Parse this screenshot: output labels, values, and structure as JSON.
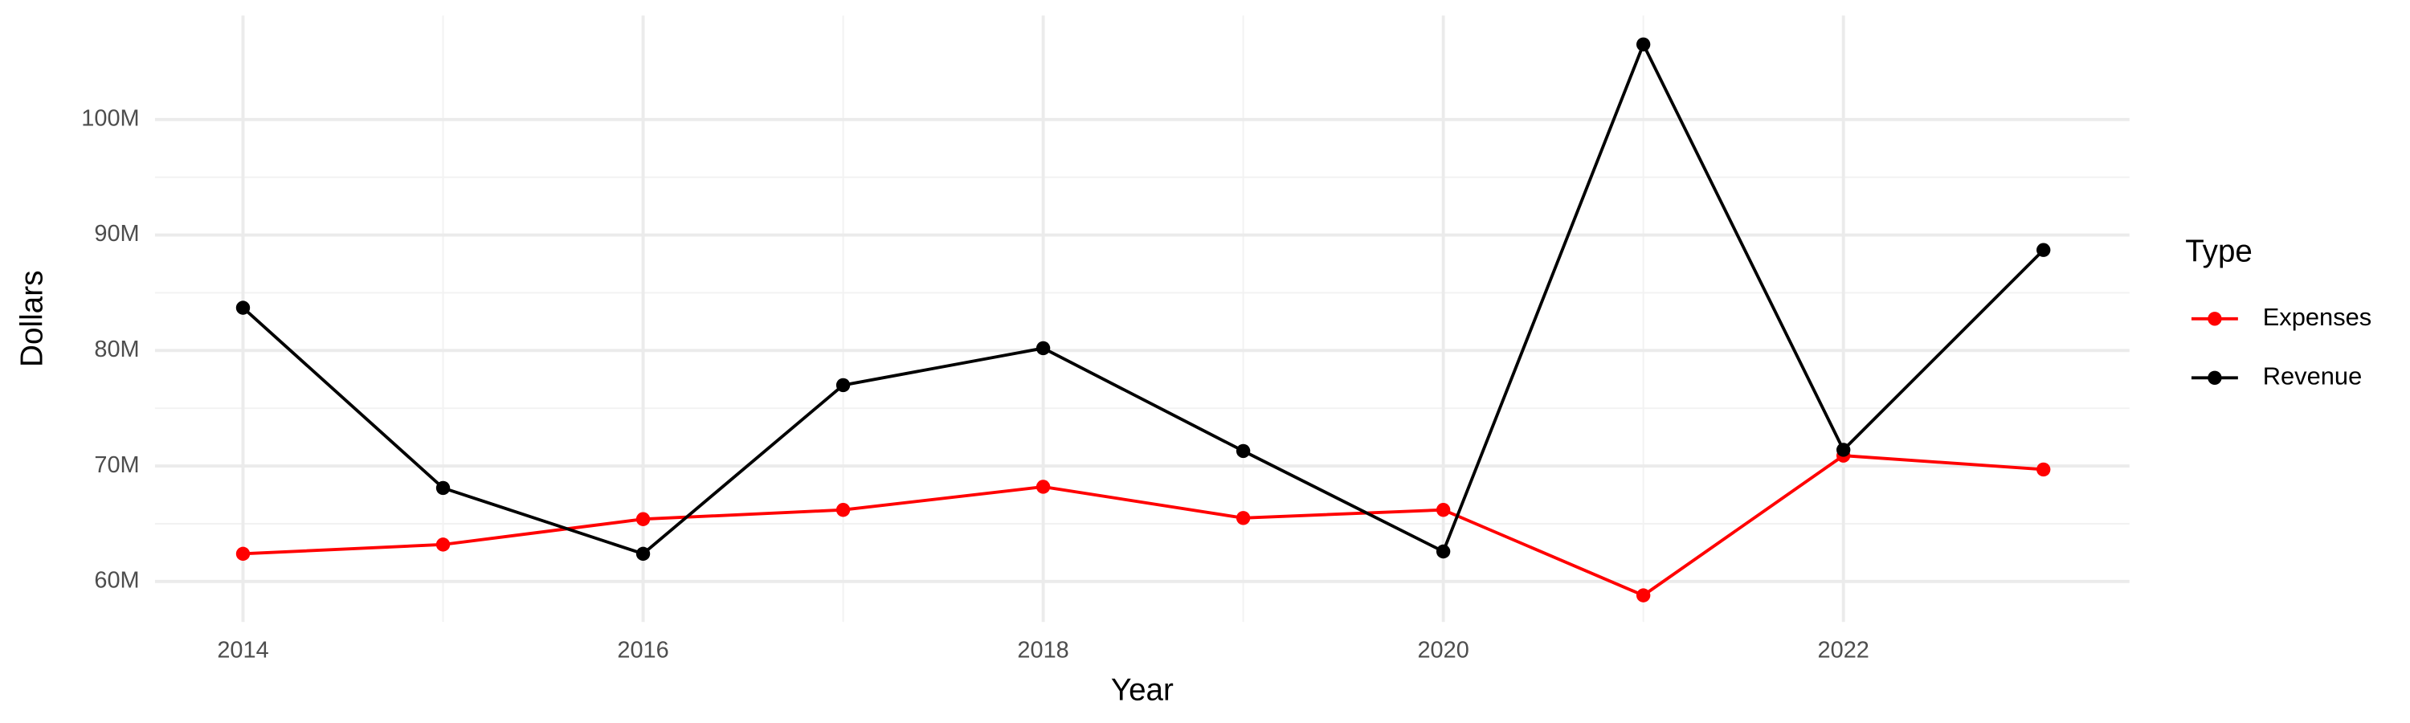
{
  "chart_data": {
    "type": "line",
    "x_label": "Year",
    "y_label": "Dollars",
    "legend_title": "Type",
    "legend_position": "right",
    "x": [
      2014,
      2015,
      2016,
      2017,
      2018,
      2019,
      2020,
      2021,
      2022,
      2023
    ],
    "series": [
      {
        "name": "Expenses",
        "color": "#ff0000",
        "values": [
          62400000,
          63200000,
          65400000,
          66200000,
          68200000,
          65500000,
          66200000,
          58800000,
          70900000,
          69700000
        ]
      },
      {
        "name": "Revenue",
        "color": "#000000",
        "values": [
          83700000,
          68100000,
          62400000,
          77000000,
          80200000,
          71300000,
          62600000,
          106500000,
          71400000,
          88700000
        ]
      }
    ],
    "xlim": [
      2013.56,
      2023.43
    ],
    "xticks": [
      2014,
      2016,
      2018,
      2020,
      2022
    ],
    "ylim": [
      56500000,
      109000000
    ],
    "yticks": [
      {
        "value": 60000000,
        "label": "60M"
      },
      {
        "value": 70000000,
        "label": "70M"
      },
      {
        "value": 80000000,
        "label": "80M"
      },
      {
        "value": 90000000,
        "label": "90M"
      },
      {
        "value": 100000000,
        "label": "100M"
      }
    ],
    "grid": true
  }
}
